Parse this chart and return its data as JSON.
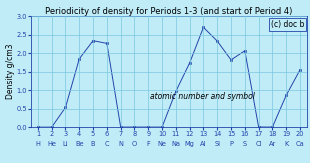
{
  "title": "Periodicity of density for Periods 1-3 (and start of Period 4)",
  "annotation": "(c) doc b",
  "xlabel_text": "atomic number and symbol",
  "ylabel": "Density g/cm3",
  "xlim": [
    0.5,
    20.5
  ],
  "ylim": [
    0.0,
    3.0
  ],
  "yticks": [
    0.0,
    0.5,
    1.0,
    1.5,
    2.0,
    2.5,
    3.0
  ],
  "xticks": [
    1,
    2,
    3,
    4,
    5,
    6,
    7,
    8,
    9,
    10,
    11,
    12,
    13,
    14,
    15,
    16,
    17,
    18,
    19,
    20
  ],
  "element_numbers": [
    1,
    2,
    3,
    4,
    5,
    6,
    7,
    8,
    9,
    10,
    11,
    12,
    13,
    14,
    15,
    16,
    17,
    18,
    19,
    20
  ],
  "element_symbols": [
    "H",
    "He",
    "Li",
    "Be",
    "B",
    "C",
    "N",
    "O",
    "F",
    "Ne",
    "Na",
    "Mg",
    "Al",
    "Si",
    "P",
    "S",
    "Cl",
    "Ar",
    "K",
    "Ca"
  ],
  "densities": [
    9e-05,
    0.000178,
    0.534,
    1.85,
    2.34,
    2.267,
    0.00125,
    0.00143,
    0.0017,
    0.0009,
    0.968,
    1.738,
    2.7,
    2.33,
    1.82,
    2.067,
    0.00321,
    0.00178,
    0.862,
    1.55
  ],
  "line_color": "#2244aa",
  "marker_color": "#2244aa",
  "bg_color": "#c0ecf8",
  "grid_color": "#7ac8e0",
  "title_fontsize": 6.0,
  "tick_fontsize": 4.8,
  "ylabel_fontsize": 5.5,
  "annot_fontsize": 5.5,
  "xlabel_fontsize": 5.5
}
